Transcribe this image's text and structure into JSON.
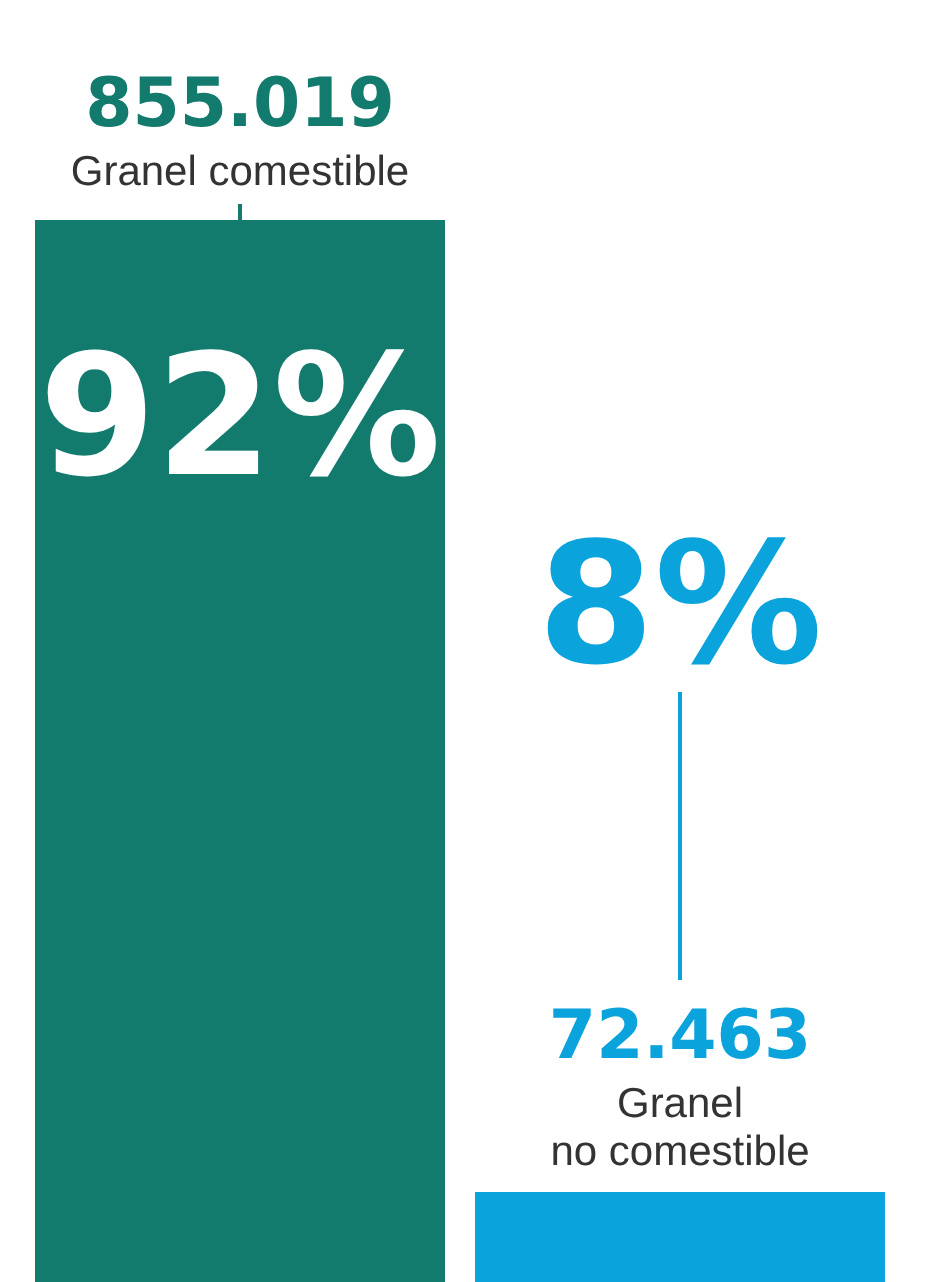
{
  "chart_data": {
    "type": "bar",
    "categories": [
      "Granel comestible",
      "Granel no comestible"
    ],
    "values": [
      855019,
      72463
    ],
    "colors": [
      "#137a6e",
      "#0aa3dc"
    ],
    "value_labels": [
      "855.019",
      "72.463"
    ],
    "annotations": [
      "92%",
      "8%"
    ]
  }
}
